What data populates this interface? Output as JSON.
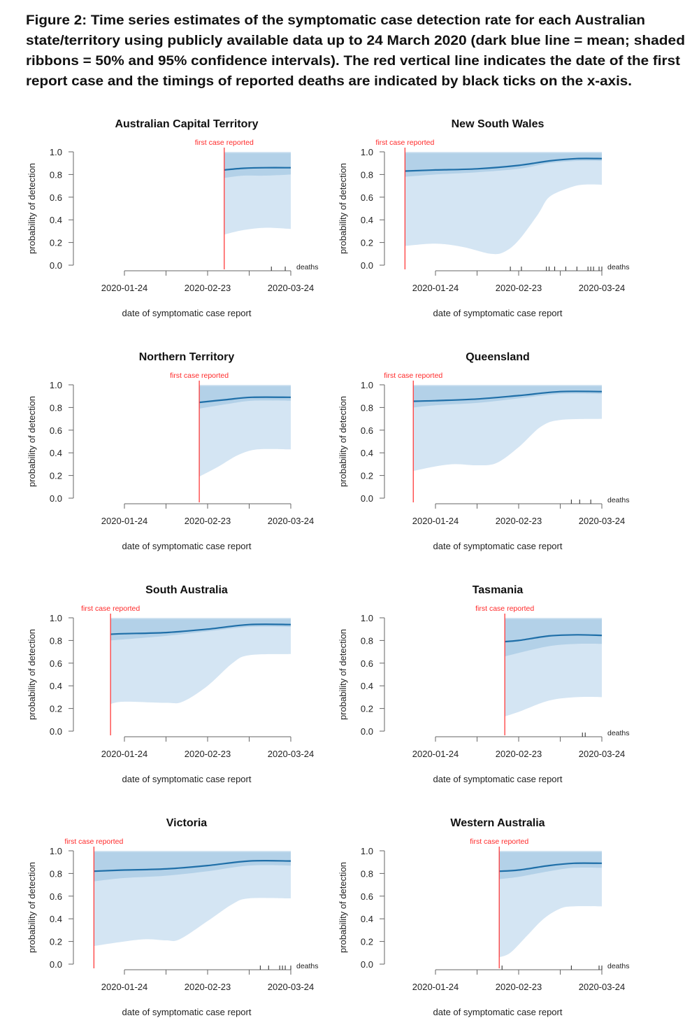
{
  "caption": {
    "lines": [
      "Figure 2: Time series estimates of the symptomatic case detection rate for each Australian",
      "state/territory using publicly available data up to 24 March 2020 (dark blue line = mean; shaded",
      "ribbons = 50% and 95% confidence intervals). The red vertical line indicates the date of the first",
      "report case and the timings of reported deaths are indicated by black ticks on the x-axis."
    ]
  },
  "colors": {
    "mean_line": "#1f6fa8",
    "ribbon_50": "#b3d1e8",
    "ribbon_95": "#d4e5f3",
    "first_case_line": "#ff3b3b",
    "axis": "#666666"
  },
  "chart_data": [
    {
      "type": "area",
      "title": "Australian Capital Territory",
      "xlabel": "date of symptomatic case report",
      "ylabel": "probability of detection",
      "ylim": [
        0,
        1
      ],
      "yticks": [
        "0.0",
        "0.2",
        "0.4",
        "0.6",
        "0.8",
        "1.0"
      ],
      "xticks": [
        "2020-01-24",
        "2020-02-23",
        "2020-03-24"
      ],
      "first_case_label": "first case reported",
      "first_case_date": "2020-02-29",
      "deaths_label": "deaths",
      "deaths": [
        "2020-03-17",
        "2020-03-22"
      ],
      "upper95": 1.0,
      "upper50": 0.99,
      "mean": [
        [
          "2020-02-29",
          0.84
        ],
        [
          "2020-03-07",
          0.855
        ],
        [
          "2020-03-15",
          0.86
        ],
        [
          "2020-03-24",
          0.86
        ]
      ],
      "lower50": [
        [
          "2020-02-29",
          0.77
        ],
        [
          "2020-03-07",
          0.79
        ],
        [
          "2020-03-15",
          0.79
        ],
        [
          "2020-03-24",
          0.8
        ]
      ],
      "lower95": [
        [
          "2020-02-29",
          0.27
        ],
        [
          "2020-03-07",
          0.31
        ],
        [
          "2020-03-15",
          0.33
        ],
        [
          "2020-03-24",
          0.32
        ]
      ]
    },
    {
      "type": "area",
      "title": "New South Wales",
      "xlabel": "date of symptomatic case report",
      "ylabel": "probability of detection",
      "ylim": [
        0,
        1
      ],
      "yticks": [
        "0.0",
        "0.2",
        "0.4",
        "0.6",
        "0.8",
        "1.0"
      ],
      "xticks": [
        "2020-01-24",
        "2020-02-23",
        "2020-03-24"
      ],
      "first_case_label": "first case reported",
      "first_case_date": "2020-01-13",
      "deaths_label": "deaths",
      "deaths": [
        "2020-02-20",
        "2020-02-24",
        "2020-03-04",
        "2020-03-05",
        "2020-03-07",
        "2020-03-11",
        "2020-03-15",
        "2020-03-19",
        "2020-03-20",
        "2020-03-21",
        "2020-03-23",
        "2020-03-24"
      ],
      "upper95": 1.0,
      "upper50": 0.99,
      "mean": [
        [
          "2020-01-13",
          0.83
        ],
        [
          "2020-01-24",
          0.84
        ],
        [
          "2020-02-08",
          0.85
        ],
        [
          "2020-02-23",
          0.88
        ],
        [
          "2020-03-05",
          0.92
        ],
        [
          "2020-03-15",
          0.94
        ],
        [
          "2020-03-24",
          0.94
        ]
      ],
      "lower50": [
        [
          "2020-01-13",
          0.78
        ],
        [
          "2020-01-24",
          0.8
        ],
        [
          "2020-02-08",
          0.82
        ],
        [
          "2020-02-23",
          0.85
        ],
        [
          "2020-03-05",
          0.9
        ],
        [
          "2020-03-15",
          0.92
        ],
        [
          "2020-03-24",
          0.92
        ]
      ],
      "lower95": [
        [
          "2020-01-13",
          0.17
        ],
        [
          "2020-01-24",
          0.19
        ],
        [
          "2020-02-03",
          0.16
        ],
        [
          "2020-02-13",
          0.1
        ],
        [
          "2020-02-18",
          0.12
        ],
        [
          "2020-02-23",
          0.22
        ],
        [
          "2020-03-01",
          0.45
        ],
        [
          "2020-03-05",
          0.6
        ],
        [
          "2020-03-12",
          0.68
        ],
        [
          "2020-03-17",
          0.71
        ],
        [
          "2020-03-24",
          0.71
        ]
      ]
    },
    {
      "type": "area",
      "title": "Northern Territory",
      "xlabel": "date of symptomatic case report",
      "ylabel": "probability of detection",
      "ylim": [
        0,
        1
      ],
      "yticks": [
        "0.0",
        "0.2",
        "0.4",
        "0.6",
        "0.8",
        "1.0"
      ],
      "xticks": [
        "2020-01-24",
        "2020-02-23",
        "2020-03-24"
      ],
      "first_case_label": "first case reported",
      "first_case_date": "2020-02-20",
      "deaths_label": "",
      "deaths": [],
      "upper95": 1.0,
      "upper50": 0.99,
      "mean": [
        [
          "2020-02-20",
          0.845
        ],
        [
          "2020-03-01",
          0.87
        ],
        [
          "2020-03-10",
          0.89
        ],
        [
          "2020-03-24",
          0.89
        ]
      ],
      "lower50": [
        [
          "2020-02-20",
          0.79
        ],
        [
          "2020-03-01",
          0.83
        ],
        [
          "2020-03-10",
          0.86
        ],
        [
          "2020-03-24",
          0.86
        ]
      ],
      "lower95": [
        [
          "2020-02-20",
          0.19
        ],
        [
          "2020-02-27",
          0.28
        ],
        [
          "2020-03-05",
          0.38
        ],
        [
          "2020-03-12",
          0.43
        ],
        [
          "2020-03-24",
          0.43
        ]
      ]
    },
    {
      "type": "area",
      "title": "Queensland",
      "xlabel": "date of symptomatic case report",
      "ylabel": "probability of detection",
      "ylim": [
        0,
        1
      ],
      "yticks": [
        "0.0",
        "0.2",
        "0.4",
        "0.6",
        "0.8",
        "1.0"
      ],
      "xticks": [
        "2020-01-24",
        "2020-02-23",
        "2020-03-24"
      ],
      "first_case_label": "first case reported",
      "first_case_date": "2020-01-16",
      "deaths_label": "deaths",
      "deaths": [
        "2020-03-13",
        "2020-03-16",
        "2020-03-20"
      ],
      "upper95": 1.0,
      "upper50": 0.99,
      "mean": [
        [
          "2020-01-16",
          0.855
        ],
        [
          "2020-01-24",
          0.86
        ],
        [
          "2020-02-08",
          0.875
        ],
        [
          "2020-02-23",
          0.905
        ],
        [
          "2020-03-09",
          0.94
        ],
        [
          "2020-03-24",
          0.94
        ]
      ],
      "lower50": [
        [
          "2020-01-16",
          0.8
        ],
        [
          "2020-01-24",
          0.82
        ],
        [
          "2020-02-08",
          0.84
        ],
        [
          "2020-02-23",
          0.88
        ],
        [
          "2020-03-09",
          0.92
        ],
        [
          "2020-03-24",
          0.92
        ]
      ],
      "lower95": [
        [
          "2020-01-16",
          0.24
        ],
        [
          "2020-01-24",
          0.28
        ],
        [
          "2020-01-31",
          0.3
        ],
        [
          "2020-02-08",
          0.29
        ],
        [
          "2020-02-15",
          0.31
        ],
        [
          "2020-02-23",
          0.45
        ],
        [
          "2020-03-02",
          0.63
        ],
        [
          "2020-03-09",
          0.69
        ],
        [
          "2020-03-24",
          0.7
        ]
      ]
    },
    {
      "type": "area",
      "title": "South Australia",
      "xlabel": "date of symptomatic case report",
      "ylabel": "probability of detection",
      "ylim": [
        0,
        1
      ],
      "yticks": [
        "0.0",
        "0.2",
        "0.4",
        "0.6",
        "0.8",
        "1.0"
      ],
      "xticks": [
        "2020-01-24",
        "2020-02-23",
        "2020-03-24"
      ],
      "first_case_label": "first case reported",
      "first_case_date": "2020-01-19",
      "deaths_label": "",
      "deaths": [],
      "upper95": 1.0,
      "upper50": 0.99,
      "mean": [
        [
          "2020-01-19",
          0.855
        ],
        [
          "2020-01-24",
          0.86
        ],
        [
          "2020-02-08",
          0.87
        ],
        [
          "2020-02-23",
          0.9
        ],
        [
          "2020-03-09",
          0.94
        ],
        [
          "2020-03-24",
          0.94
        ]
      ],
      "lower50": [
        [
          "2020-01-19",
          0.8
        ],
        [
          "2020-01-24",
          0.81
        ],
        [
          "2020-02-08",
          0.84
        ],
        [
          "2020-02-23",
          0.88
        ],
        [
          "2020-03-09",
          0.92
        ],
        [
          "2020-03-24",
          0.92
        ]
      ],
      "lower95": [
        [
          "2020-01-19",
          0.24
        ],
        [
          "2020-01-24",
          0.26
        ],
        [
          "2020-02-08",
          0.25
        ],
        [
          "2020-02-14",
          0.26
        ],
        [
          "2020-02-23",
          0.4
        ],
        [
          "2020-03-03",
          0.6
        ],
        [
          "2020-03-09",
          0.67
        ],
        [
          "2020-03-24",
          0.68
        ]
      ]
    },
    {
      "type": "area",
      "title": "Tasmania",
      "xlabel": "date of symptomatic case report",
      "ylabel": "probability of detection",
      "ylim": [
        0,
        1
      ],
      "yticks": [
        "0.0",
        "0.2",
        "0.4",
        "0.6",
        "0.8",
        "1.0"
      ],
      "xticks": [
        "2020-01-24",
        "2020-02-23",
        "2020-03-24"
      ],
      "first_case_label": "first case reported",
      "first_case_date": "2020-02-18",
      "deaths_label": "deaths",
      "deaths": [
        "2020-03-17",
        "2020-03-18"
      ],
      "upper95": 1.0,
      "upper50": 0.99,
      "mean": [
        [
          "2020-02-18",
          0.79
        ],
        [
          "2020-02-23",
          0.8
        ],
        [
          "2020-03-05",
          0.84
        ],
        [
          "2020-03-15",
          0.85
        ],
        [
          "2020-03-24",
          0.845
        ]
      ],
      "lower50": [
        [
          "2020-02-18",
          0.66
        ],
        [
          "2020-02-23",
          0.69
        ],
        [
          "2020-03-05",
          0.75
        ],
        [
          "2020-03-15",
          0.77
        ],
        [
          "2020-03-24",
          0.77
        ]
      ],
      "lower95": [
        [
          "2020-02-18",
          0.13
        ],
        [
          "2020-02-23",
          0.17
        ],
        [
          "2020-03-05",
          0.27
        ],
        [
          "2020-03-15",
          0.3
        ],
        [
          "2020-03-24",
          0.3
        ]
      ]
    },
    {
      "type": "area",
      "title": "Victoria",
      "xlabel": "date of symptomatic case report",
      "ylabel": "probability of detection",
      "ylim": [
        0,
        1
      ],
      "yticks": [
        "0.0",
        "0.2",
        "0.4",
        "0.6",
        "0.8",
        "1.0"
      ],
      "xticks": [
        "2020-01-24",
        "2020-02-23",
        "2020-03-24"
      ],
      "first_case_label": "first case reported",
      "first_case_date": "2020-01-13",
      "deaths_label": "deaths",
      "deaths": [
        "2020-03-13",
        "2020-03-16",
        "2020-03-20",
        "2020-03-21",
        "2020-03-22",
        "2020-03-24"
      ],
      "upper95": 1.0,
      "upper50": 0.99,
      "mean": [
        [
          "2020-01-13",
          0.82
        ],
        [
          "2020-01-24",
          0.83
        ],
        [
          "2020-02-08",
          0.84
        ],
        [
          "2020-02-23",
          0.87
        ],
        [
          "2020-03-09",
          0.91
        ],
        [
          "2020-03-24",
          0.91
        ]
      ],
      "lower50": [
        [
          "2020-01-13",
          0.73
        ],
        [
          "2020-01-24",
          0.76
        ],
        [
          "2020-02-08",
          0.78
        ],
        [
          "2020-02-23",
          0.82
        ],
        [
          "2020-03-09",
          0.87
        ],
        [
          "2020-03-24",
          0.87
        ]
      ],
      "lower95": [
        [
          "2020-01-13",
          0.16
        ],
        [
          "2020-01-24",
          0.2
        ],
        [
          "2020-02-01",
          0.22
        ],
        [
          "2020-02-08",
          0.21
        ],
        [
          "2020-02-13",
          0.22
        ],
        [
          "2020-02-23",
          0.38
        ],
        [
          "2020-03-03",
          0.53
        ],
        [
          "2020-03-09",
          0.58
        ],
        [
          "2020-03-24",
          0.58
        ]
      ]
    },
    {
      "type": "area",
      "title": "Western Australia",
      "xlabel": "date of symptomatic case report",
      "ylabel": "probability of detection",
      "ylim": [
        0,
        1
      ],
      "yticks": [
        "0.0",
        "0.2",
        "0.4",
        "0.6",
        "0.8",
        "1.0"
      ],
      "xticks": [
        "2020-01-24",
        "2020-02-23",
        "2020-03-24"
      ],
      "first_case_label": "first case reported",
      "first_case_date": "2020-02-16",
      "deaths_label": "deaths",
      "deaths": [
        "2020-02-17",
        "2020-03-13",
        "2020-03-23",
        "2020-03-24"
      ],
      "upper95": 1.0,
      "upper50": 0.99,
      "mean": [
        [
          "2020-02-16",
          0.82
        ],
        [
          "2020-02-23",
          0.83
        ],
        [
          "2020-03-05",
          0.87
        ],
        [
          "2020-03-14",
          0.89
        ],
        [
          "2020-03-24",
          0.89
        ]
      ],
      "lower50": [
        [
          "2020-02-16",
          0.75
        ],
        [
          "2020-02-23",
          0.77
        ],
        [
          "2020-03-05",
          0.82
        ],
        [
          "2020-03-14",
          0.85
        ],
        [
          "2020-03-24",
          0.85
        ]
      ],
      "lower95": [
        [
          "2020-02-16",
          0.06
        ],
        [
          "2020-02-20",
          0.1
        ],
        [
          "2020-02-26",
          0.25
        ],
        [
          "2020-03-03",
          0.4
        ],
        [
          "2020-03-09",
          0.49
        ],
        [
          "2020-03-14",
          0.51
        ],
        [
          "2020-03-24",
          0.51
        ]
      ]
    }
  ]
}
